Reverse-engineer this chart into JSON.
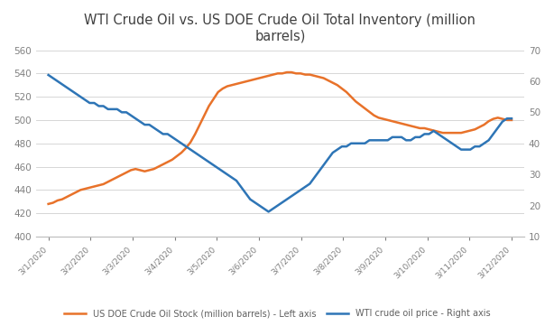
{
  "title": "WTI Crude Oil vs. US DOE Crude Oil Total Inventory (million\nbarrels)",
  "x_labels": [
    "3/1/2020",
    "3/2/2020",
    "3/3/2020",
    "3/4/2020",
    "3/5/2020",
    "3/6/2020",
    "3/7/2020",
    "3/8/2020",
    "3/9/2020",
    "3/10/2020",
    "3/11/2020",
    "3/12/2020"
  ],
  "inventory_color": "#E8722A",
  "wti_color": "#2E75B6",
  "inventory_data": [
    428,
    429,
    431,
    432,
    434,
    436,
    438,
    440,
    441,
    442,
    443,
    444,
    445,
    447,
    449,
    451,
    453,
    455,
    457,
    458,
    457,
    456,
    457,
    458,
    460,
    462,
    464,
    466,
    469,
    472,
    476,
    481,
    488,
    496,
    504,
    512,
    518,
    524,
    527,
    529,
    530,
    531,
    532,
    533,
    534,
    535,
    536,
    537,
    538,
    539,
    540,
    540,
    541,
    541,
    540,
    540,
    539,
    539,
    538,
    537,
    536,
    534,
    532,
    530,
    527,
    524,
    520,
    516,
    513,
    510,
    507,
    504,
    502,
    501,
    500,
    499,
    498,
    497,
    496,
    495,
    494,
    493,
    493,
    492,
    491,
    490,
    489,
    489,
    489,
    489,
    489,
    490,
    491,
    492,
    494,
    496,
    499,
    501,
    502,
    501,
    500,
    500
  ],
  "wti_data": [
    62,
    61,
    60,
    59,
    58,
    57,
    56,
    55,
    54,
    53,
    53,
    52,
    52,
    51,
    51,
    51,
    50,
    50,
    49,
    48,
    47,
    46,
    46,
    45,
    44,
    43,
    43,
    42,
    41,
    40,
    39,
    38,
    37,
    36,
    35,
    34,
    33,
    32,
    31,
    30,
    29,
    28,
    26,
    24,
    22,
    21,
    20,
    19,
    18,
    19,
    20,
    21,
    22,
    23,
    24,
    25,
    26,
    27,
    29,
    31,
    33,
    35,
    37,
    38,
    39,
    39,
    40,
    40,
    40,
    40,
    41,
    41,
    41,
    41,
    41,
    42,
    42,
    42,
    41,
    41,
    42,
    42,
    43,
    43,
    44,
    43,
    42,
    41,
    40,
    39,
    38,
    38,
    38,
    39,
    39,
    40,
    41,
    43,
    45,
    47,
    48,
    48
  ],
  "left_ylim": [
    400,
    560
  ],
  "right_ylim": [
    10,
    70
  ],
  "left_yticks": [
    400,
    420,
    440,
    460,
    480,
    500,
    520,
    540,
    560
  ],
  "right_yticks": [
    10,
    20,
    30,
    40,
    50,
    60,
    70
  ],
  "legend_inventory": "US DOE Crude Oil Stock (million barrels) - Left axis",
  "legend_wti": "WTI crude oil price - Right axis",
  "bg_color": "#FFFFFF"
}
